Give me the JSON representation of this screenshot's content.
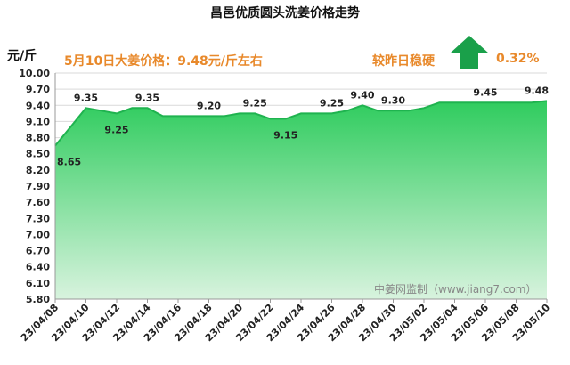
{
  "header": {
    "title": "昌邑优质圆头洗姜价格走势",
    "unit": "元/斤",
    "price_line": "5月10日大姜价格：9.48元/斤左右",
    "compare_text": "较昨日稳硬",
    "change_pct": "0.32%",
    "arrow_icon": "up-arrow-icon",
    "accent_color": "#e8892b",
    "arrow_color": "#1aa04a"
  },
  "watermark": "中姜网监制（www.jiang7.com）",
  "chart_data": {
    "type": "area",
    "title": "昌邑优质圆头洗姜价格走势",
    "ylabel": "元/斤",
    "xlabel": "",
    "ylim": [
      5.8,
      10.0
    ],
    "y_ticks": [
      "5.80",
      "6.10",
      "6.40",
      "6.70",
      "7.00",
      "7.30",
      "7.60",
      "7.90",
      "8.20",
      "8.50",
      "8.80",
      "9.10",
      "9.40",
      "9.70",
      "10.00"
    ],
    "grid": true,
    "fill_color": "#33cc66",
    "x_tick_labels": [
      "23/04/08",
      "23/04/10",
      "23/04/12",
      "23/04/14",
      "23/04/16",
      "23/04/18",
      "23/04/20",
      "23/04/22",
      "23/04/24",
      "23/04/26",
      "23/04/28",
      "23/04/30",
      "23/05/02",
      "23/05/04",
      "23/05/06",
      "23/05/08",
      "23/05/10"
    ],
    "x": [
      "23/04/08",
      "23/04/09",
      "23/04/10",
      "23/04/11",
      "23/04/12",
      "23/04/13",
      "23/04/14",
      "23/04/15",
      "23/04/16",
      "23/04/17",
      "23/04/18",
      "23/04/19",
      "23/04/20",
      "23/04/21",
      "23/04/22",
      "23/04/23",
      "23/04/24",
      "23/04/25",
      "23/04/26",
      "23/04/27",
      "23/04/28",
      "23/04/29",
      "23/04/30",
      "23/05/01",
      "23/05/02",
      "23/05/03",
      "23/05/04",
      "23/05/05",
      "23/05/06",
      "23/05/07",
      "23/05/08",
      "23/05/09",
      "23/05/10"
    ],
    "values": [
      8.65,
      9.0,
      9.35,
      9.3,
      9.25,
      9.35,
      9.35,
      9.2,
      9.2,
      9.2,
      9.2,
      9.2,
      9.25,
      9.25,
      9.15,
      9.15,
      9.25,
      9.25,
      9.25,
      9.3,
      9.4,
      9.3,
      9.3,
      9.3,
      9.35,
      9.45,
      9.45,
      9.45,
      9.45,
      9.45,
      9.45,
      9.45,
      9.48
    ],
    "data_labels": [
      {
        "index": 0,
        "text": "8.65",
        "pos": "below"
      },
      {
        "index": 2,
        "text": "9.35",
        "pos": "above"
      },
      {
        "index": 4,
        "text": "9.25",
        "pos": "below"
      },
      {
        "index": 6,
        "text": "9.35",
        "pos": "above"
      },
      {
        "index": 10,
        "text": "9.20",
        "pos": "above"
      },
      {
        "index": 13,
        "text": "9.25",
        "pos": "above"
      },
      {
        "index": 15,
        "text": "9.15",
        "pos": "below"
      },
      {
        "index": 18,
        "text": "9.25",
        "pos": "above"
      },
      {
        "index": 20,
        "text": "9.40",
        "pos": "above"
      },
      {
        "index": 22,
        "text": "9.30",
        "pos": "above"
      },
      {
        "index": 28,
        "text": "9.45",
        "pos": "above"
      },
      {
        "index": 32,
        "text": "9.48",
        "pos": "above"
      }
    ]
  }
}
